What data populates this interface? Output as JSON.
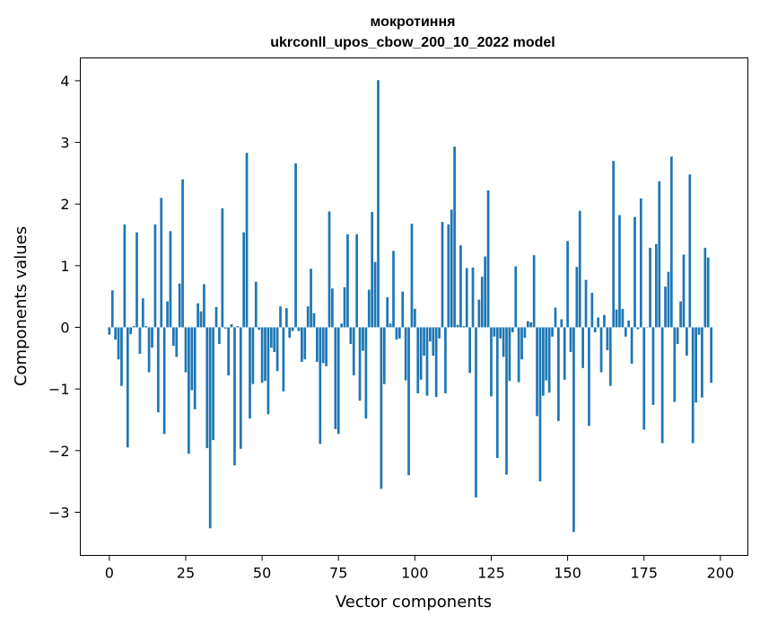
{
  "chart_data": {
    "type": "bar",
    "title_line1": "мокротиння",
    "title_line2": "ukrconll_upos_cbow_200_10_2022 model",
    "xlabel": "Vector components",
    "ylabel": "Components values",
    "xlim": [
      -9.5,
      209
    ],
    "ylim": [
      -3.7,
      4.37
    ],
    "x_ticks": [
      0,
      25,
      50,
      75,
      100,
      125,
      150,
      175,
      200
    ],
    "x_tick_labels": [
      "0",
      "25",
      "50",
      "75",
      "100",
      "125",
      "150",
      "175",
      "200"
    ],
    "y_ticks": [
      -3,
      -2,
      -1,
      0,
      1,
      2,
      3,
      4
    ],
    "y_tick_labels": [
      "−3",
      "−2",
      "−1",
      "0",
      "1",
      "2",
      "3",
      "4"
    ],
    "bar_color": "#1f77b4",
    "grid": false,
    "values": [
      -0.12,
      0.6,
      -0.2,
      -0.52,
      -0.95,
      1.67,
      -1.95,
      -0.11,
      0.02,
      1.54,
      -0.43,
      0.47,
      0.02,
      -0.73,
      -0.33,
      1.67,
      -1.38,
      2.1,
      -1.73,
      0.42,
      1.56,
      -0.3,
      -0.48,
      0.71,
      2.4,
      -0.73,
      -2.05,
      -1.02,
      -1.33,
      0.39,
      0.26,
      0.7,
      -1.96,
      -3.26,
      -1.83,
      0.33,
      -0.27,
      1.93,
      -0.02,
      -0.78,
      0.05,
      -2.24,
      0.02,
      -1.97,
      1.54,
      2.83,
      -1.48,
      -0.92,
      0.74,
      -0.04,
      -0.9,
      -0.87,
      -1.41,
      -0.33,
      -0.4,
      -0.71,
      0.34,
      -1.04,
      0.31,
      -0.17,
      -0.06,
      2.66,
      -0.06,
      -0.56,
      -0.52,
      0.34,
      0.95,
      0.23,
      -0.56,
      -1.89,
      -0.58,
      -0.63,
      1.88,
      0.63,
      -1.65,
      -1.73,
      0.06,
      0.65,
      1.51,
      -0.27,
      -0.78,
      1.51,
      -1.19,
      -0.38,
      -1.48,
      0.61,
      1.87,
      1.06,
      4.01,
      -2.62,
      -0.92,
      0.49,
      0.06,
      1.24,
      -0.2,
      -0.18,
      0.58,
      -0.86,
      -2.4,
      1.68,
      0.3,
      -1.07,
      -0.85,
      -0.46,
      -1.11,
      -0.23,
      -0.46,
      -1.13,
      -0.18,
      1.71,
      -1.07,
      1.67,
      1.91,
      2.93,
      0.04,
      1.33,
      0.02,
      0.96,
      -0.74,
      0.97,
      -2.76,
      0.45,
      0.82,
      1.15,
      2.22,
      -1.12,
      -0.15,
      -2.12,
      -0.18,
      -0.48,
      -2.39,
      -0.87,
      -0.08,
      0.99,
      -0.89,
      -0.52,
      -0.17,
      0.1,
      0.08,
      1.17,
      -1.44,
      -2.5,
      -1.11,
      -0.86,
      -1.06,
      -0.15,
      0.32,
      -1.52,
      0.13,
      -0.85,
      1.4,
      -0.4,
      -3.32,
      0.98,
      1.89,
      -0.66,
      0.77,
      -1.6,
      0.56,
      -0.08,
      0.16,
      -0.73,
      0.2,
      -0.37,
      -0.95,
      2.7,
      0.29,
      1.82,
      0.3,
      -0.15,
      0.11,
      -0.59,
      1.79,
      -0.03,
      2.09,
      -1.66,
      0.0,
      1.29,
      -1.26,
      1.35,
      2.37,
      -1.88,
      0.66,
      0.9,
      2.77,
      -1.21,
      -0.27,
      0.42,
      1.18,
      -0.46,
      2.48,
      -1.88,
      -1.22,
      -0.12,
      -1.14,
      1.29,
      1.13,
      -0.9
    ]
  }
}
